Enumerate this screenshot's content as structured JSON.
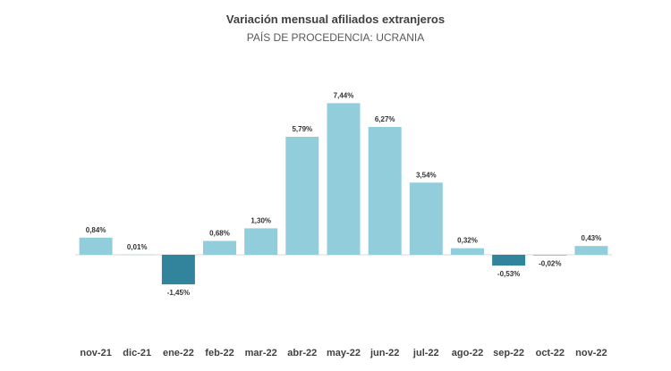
{
  "chart_data": {
    "type": "bar",
    "title": "Variación mensual afiliados extranjeros",
    "subtitle": "PAÍS DE PROCEDENCIA: UCRANIA",
    "categories": [
      "nov-21",
      "dic-21",
      "ene-22",
      "feb-22",
      "mar-22",
      "abr-22",
      "may-22",
      "jun-22",
      "jul-22",
      "ago-22",
      "sep-22",
      "oct-22",
      "nov-22"
    ],
    "values": [
      0.84,
      0.01,
      -1.45,
      0.68,
      1.3,
      5.79,
      7.44,
      6.27,
      3.54,
      0.32,
      -0.53,
      -0.02,
      0.43
    ],
    "labels": [
      "0,84%",
      "0,01%",
      "-1,45%",
      "0,68%",
      "1,30%",
      "5,79%",
      "7,44%",
      "6,27%",
      "3,54%",
      "0,32%",
      "-0,53%",
      "-0,02%",
      "0,43%"
    ],
    "xlabel": "",
    "ylabel": "",
    "ylim": [
      -2,
      8
    ],
    "grid": false,
    "legend": "none",
    "colors": {
      "positive": "#92CDDC",
      "negative": "#31849B",
      "axis": "#D9D9D9"
    }
  }
}
